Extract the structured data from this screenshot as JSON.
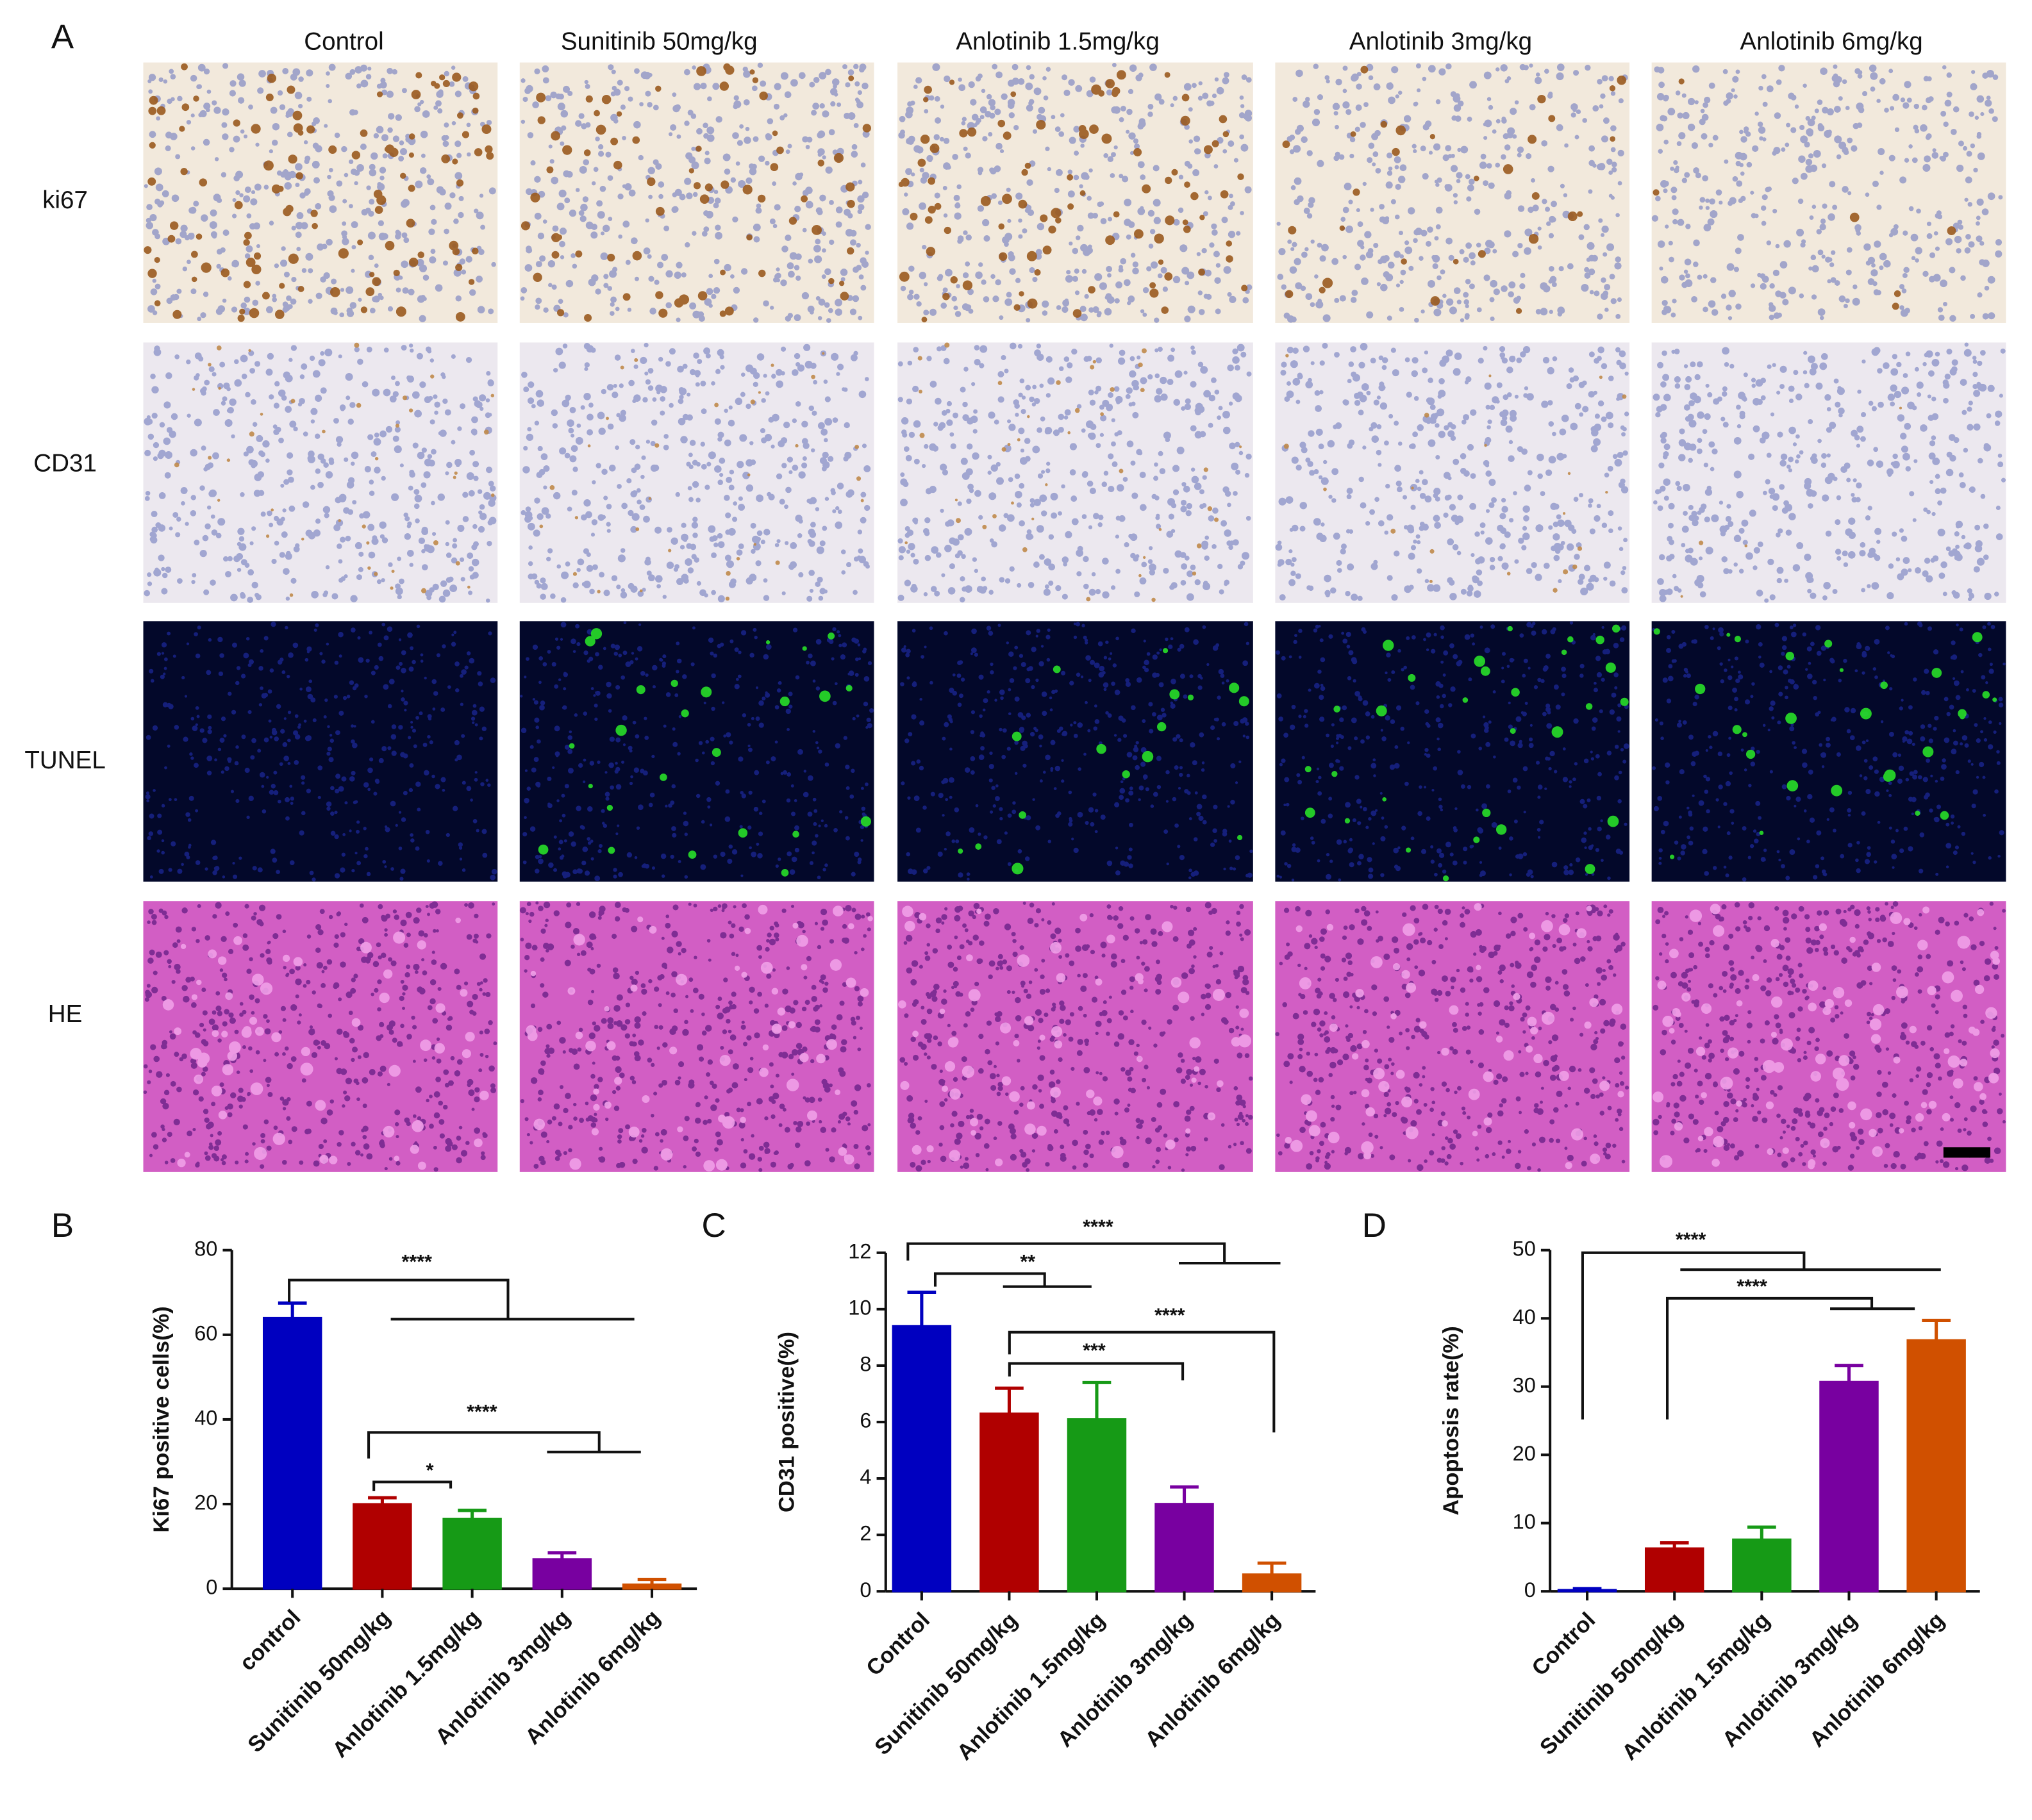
{
  "panel_a": {
    "label": "A",
    "columns": [
      "Control",
      "Sunitinib 50mg/kg",
      "Anlotinib 1.5mg/kg",
      "Anlotinib 3mg/kg",
      "Anlotinib 6mg/kg"
    ],
    "rows": [
      "ki67",
      "CD31",
      "TUNEL",
      "HE"
    ]
  },
  "chart_data": [
    {
      "type": "bar",
      "panel_label": "B",
      "ylabel": "Ki67 positive cells(%)",
      "categories": [
        "control",
        "Sunitinib 50mg/kg",
        "Anlotinib 1.5mg/kg",
        "Anlotinib 3mg/kg",
        "Anlotinib 6mg/kg"
      ],
      "values": [
        64,
        20,
        16.5,
        7,
        1
      ],
      "errors": [
        3.5,
        1.5,
        2,
        1.5,
        1.2
      ],
      "colors": [
        "#0000c0",
        "#b00000",
        "#169a16",
        "#7800a0",
        "#d05000"
      ],
      "ylim": [
        0,
        80
      ],
      "yticks": [
        0,
        20,
        40,
        60,
        80
      ],
      "annotations": [
        "****",
        "****",
        "*"
      ]
    },
    {
      "type": "bar",
      "panel_label": "C",
      "ylabel": "CD31 positive(%)",
      "categories": [
        "Control",
        "Sunitinib 50mg/kg",
        "Anlotinib 1.5mg/kg",
        "Anlotinib 3mg/kg",
        "Anlotinib 6mg/kg"
      ],
      "values": [
        9.4,
        6.3,
        6.1,
        3.1,
        0.6
      ],
      "errors": [
        1.2,
        0.9,
        1.3,
        0.6,
        0.4
      ],
      "colors": [
        "#0000c0",
        "#b00000",
        "#169a16",
        "#7800a0",
        "#d05000"
      ],
      "ylim": [
        0,
        12
      ],
      "yticks": [
        0,
        2,
        4,
        6,
        8,
        10,
        12
      ],
      "annotations": [
        "****",
        "**",
        "****",
        "***"
      ]
    },
    {
      "type": "bar",
      "panel_label": "D",
      "ylabel": "Apoptosis rate(%)",
      "categories": [
        "Control",
        "Sunitinib 50mg/kg",
        "Anlotinib 1.5mg/kg",
        "Anlotinib 3mg/kg",
        "Anlotinib 6mg/kg"
      ],
      "values": [
        0.2,
        6.3,
        7.6,
        30.7,
        36.8
      ],
      "errors": [
        0.2,
        0.8,
        1.8,
        2.4,
        2.9
      ],
      "colors": [
        "#0000c0",
        "#b00000",
        "#169a16",
        "#7800a0",
        "#d05000"
      ],
      "ylim": [
        0,
        50
      ],
      "yticks": [
        0,
        10,
        20,
        30,
        40,
        50
      ],
      "annotations": [
        "****",
        "****"
      ]
    }
  ]
}
